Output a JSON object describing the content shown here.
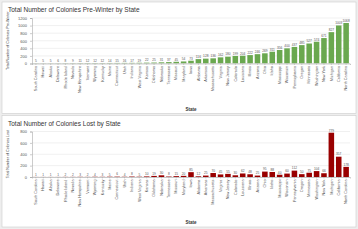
{
  "chart_data": [
    {
      "type": "bar",
      "title": "Total Number of Colonies Pre-Winter by State",
      "x_label": "State",
      "y_label": "Total Number of Colonies Pre-Winter",
      "categories": [
        "South Carolina",
        "Hawaii",
        "Alaska",
        "Delaware",
        "Rhode Island",
        "Nevada",
        "New Hampshire",
        "Vermont",
        "Wyoming",
        "Kentucky",
        "Maine",
        "Connecticut",
        "Utah",
        "Indiana",
        "West Virginia",
        "Kansas",
        "Oklahoma",
        "Nebraska",
        "Tennessee",
        "Missouri",
        "Maryland",
        "Iowa",
        "Alabama",
        "Arkansas",
        "Massachusetts",
        "Virginia",
        "New Jersey",
        "Colorado",
        "Louisiana",
        "Illinois",
        "Arizona",
        "Ohio",
        "Idaho",
        "Mississippi",
        "Wisconsin",
        "Pennsylvania",
        "Oregon",
        "Minnesota",
        "Washington",
        "New York",
        "Michigan",
        "California",
        "North Carolina"
      ],
      "values": [
        5,
        5,
        5,
        6,
        8,
        9,
        11,
        12,
        12,
        12,
        14,
        15,
        16,
        17,
        19,
        22,
        25,
        31,
        37,
        45,
        54,
        73,
        116,
        128,
        136,
        162,
        180,
        199,
        204,
        222,
        246,
        269,
        311,
        356,
        400,
        437,
        485,
        527,
        574,
        671,
        827,
        1003,
        1068
      ],
      "color": "#6aa84f",
      "ylim": [
        0,
        1200
      ],
      "yticks": [
        0,
        200,
        400,
        600,
        800,
        1000,
        1200
      ],
      "grid": true,
      "data_labels": true
    },
    {
      "type": "bar",
      "title": "Total Number of Colonies Lost by State",
      "x_label": "State",
      "y_label": "Total Number of Colonies Lost",
      "categories": [
        "South Carolina",
        "Hawaii",
        "Alaska",
        "Delaware",
        "Rhode Island",
        "Nevada",
        "New Hampshire",
        "Vermont",
        "Wyoming",
        "Kentucky",
        "Maine",
        "Connecticut",
        "Utah",
        "Indiana",
        "West Virginia",
        "Kansas",
        "Oklahoma",
        "Nebraska",
        "Tennessee",
        "Missouri",
        "Maryland",
        "Iowa",
        "Alabama",
        "Arkansas",
        "Massachusetts",
        "Virginia",
        "New Jersey",
        "Colorado",
        "Louisiana",
        "Illinois",
        "Arizona",
        "Ohio",
        "Idaho",
        "Mississippi",
        "Wisconsin",
        "Pennsylvania",
        "Oregon",
        "Minnesota",
        "Washington",
        "New York",
        "Michigan",
        "California",
        "North Carolina"
      ],
      "values": [
        1,
        1,
        1,
        1,
        2,
        2,
        3,
        2,
        4,
        3,
        5,
        6,
        4,
        8,
        5,
        10,
        19,
        30,
        8,
        15,
        20,
        85,
        12,
        25,
        70,
        45,
        55,
        30,
        62,
        48,
        25,
        95,
        88,
        40,
        60,
        112,
        50,
        75,
        104,
        66,
        779,
        357,
        178
      ],
      "color": "#990000",
      "ylim": [
        0,
        800
      ],
      "yticks": [
        0,
        200,
        400,
        600,
        800
      ],
      "grid": true,
      "data_labels": true
    }
  ]
}
